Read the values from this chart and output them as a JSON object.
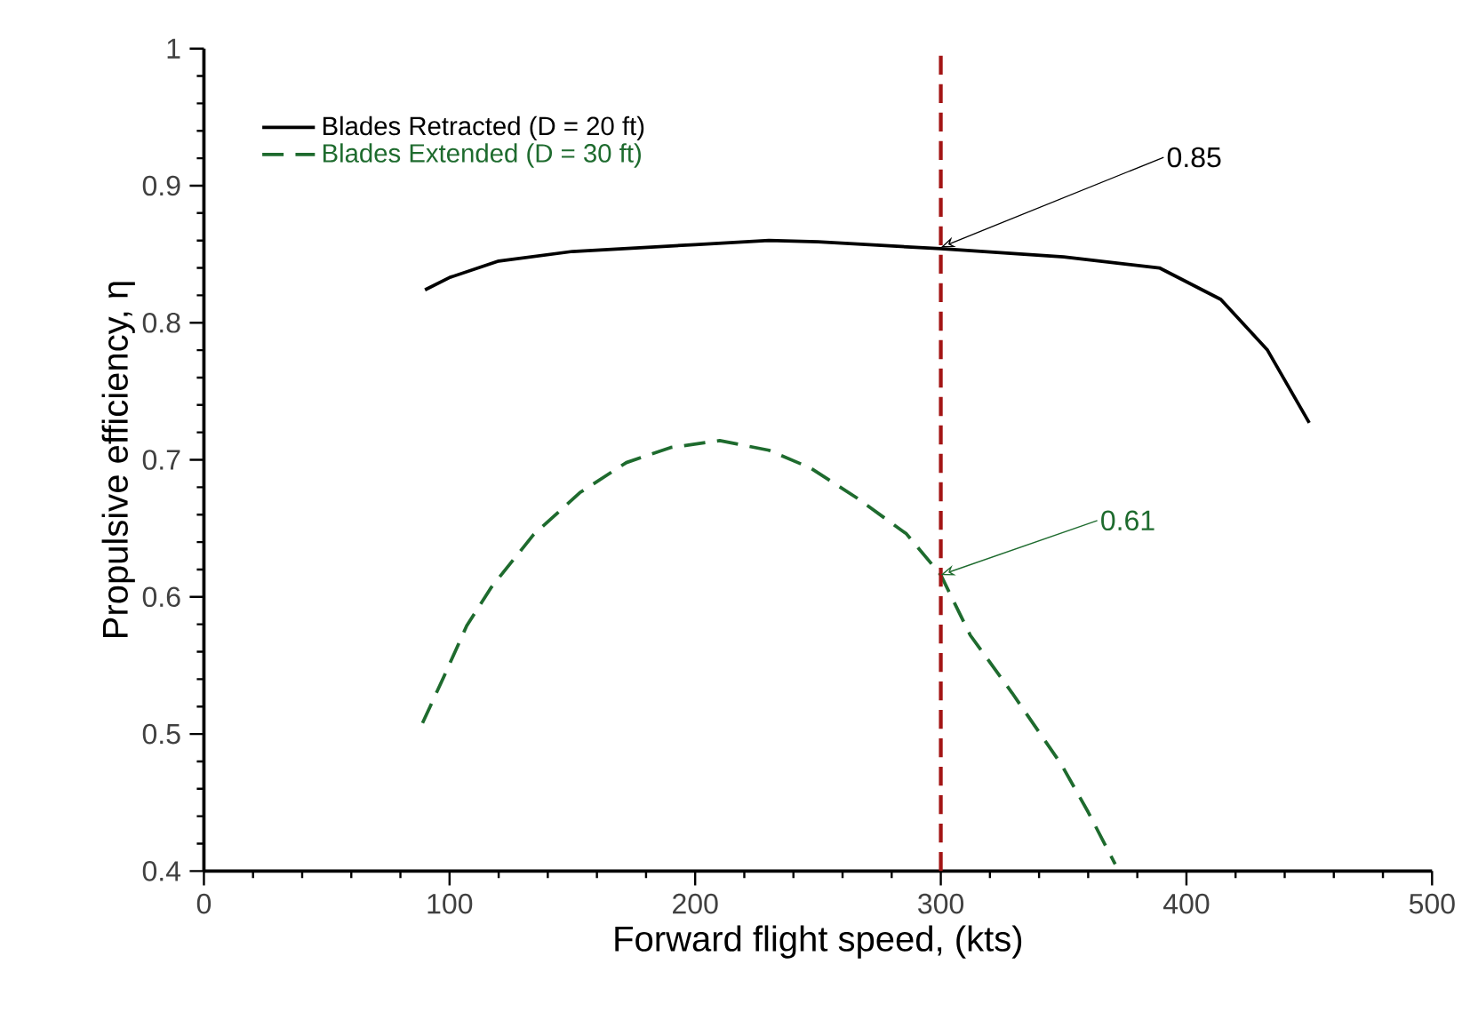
{
  "chart_data": {
    "type": "line",
    "xlabel": "Forward flight speed, (kts)",
    "ylabel": "Propulsive efficiency, η",
    "xlim": [
      0,
      500
    ],
    "ylim": [
      0.4,
      1
    ],
    "xticks": [
      0,
      100,
      200,
      300,
      400,
      500
    ],
    "yticks": [
      {
        "value": 0.4,
        "label": "0.4"
      },
      {
        "value": 0.5,
        "label": "0.5"
      },
      {
        "value": 0.6,
        "label": "0.6"
      },
      {
        "value": 0.7,
        "label": "0.7"
      },
      {
        "value": 0.8,
        "label": "0.8"
      },
      {
        "value": 0.9,
        "label": "0.9"
      },
      {
        "value": 1,
        "label": "1"
      }
    ],
    "grid": false,
    "legend": "top left",
    "series": [
      {
        "name": "Blades Retracted (D = 20 ft)",
        "color": "#000000",
        "line_style": "solid",
        "x": [
          90,
          100,
          120,
          150,
          200,
          230,
          250,
          300,
          350,
          389,
          414,
          433,
          450
        ],
        "values": [
          0.824,
          0.833,
          0.845,
          0.852,
          0.857,
          0.86,
          0.859,
          0.854,
          0.848,
          0.84,
          0.817,
          0.78,
          0.727
        ]
      },
      {
        "name": "Blades Extended (D = 30 ft)",
        "color": "#1e6b2e",
        "line_style": "dashed",
        "x": [
          89,
          98,
          107,
          117,
          134,
          153,
          172,
          190,
          210,
          230,
          247,
          266,
          286,
          300,
          312,
          329,
          349,
          360,
          371
        ],
        "values": [
          0.508,
          0.543,
          0.579,
          0.607,
          0.645,
          0.676,
          0.698,
          0.709,
          0.714,
          0.707,
          0.694,
          0.672,
          0.646,
          0.616,
          0.572,
          0.53,
          0.478,
          0.443,
          0.405
        ]
      }
    ],
    "ref_lines": [
      {
        "axis": "x",
        "value": 300,
        "color": "#a31515",
        "line_style": "dashed"
      }
    ],
    "annotations": [
      {
        "text": "0.85",
        "x": 300,
        "y": 0.855
      },
      {
        "text": "0.61",
        "x": 300,
        "y": 0.616
      }
    ]
  }
}
